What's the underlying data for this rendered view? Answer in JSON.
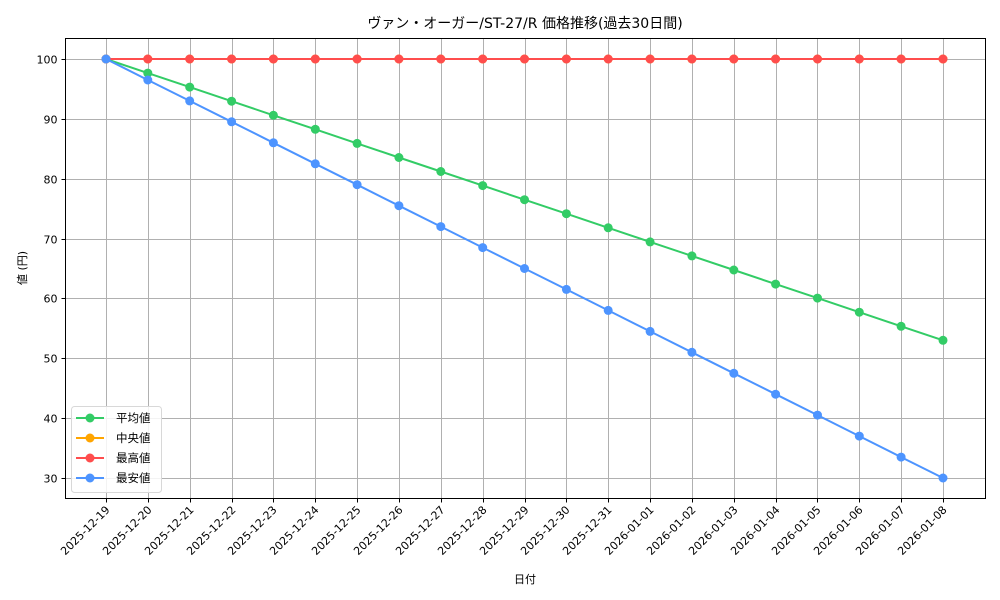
{
  "chart_data": {
    "type": "line",
    "title": "ヴァン・オーガー/ST-27/R 価格推移(過去30日間)",
    "xlabel": "日付",
    "ylabel": "値 (円)",
    "categories": [
      "2025-12-19",
      "2025-12-20",
      "2025-12-21",
      "2025-12-22",
      "2025-12-23",
      "2025-12-24",
      "2025-12-25",
      "2025-12-26",
      "2025-12-27",
      "2025-12-28",
      "2025-12-29",
      "2025-12-30",
      "2025-12-31",
      "2026-01-01",
      "2026-01-02",
      "2026-01-03",
      "2026-01-04",
      "2026-01-05",
      "2026-01-06",
      "2026-01-07",
      "2026-01-08"
    ],
    "yticks": [
      30,
      40,
      50,
      60,
      70,
      80,
      90,
      100
    ],
    "ylim": [
      26.5,
      103.5
    ],
    "grid": true,
    "legend_position": "lower left",
    "series": [
      {
        "name": "平均値",
        "color": "#33cc66",
        "values": [
          100,
          97.65,
          95.3,
          92.95,
          90.6,
          88.25,
          85.9,
          83.55,
          81.2,
          78.85,
          76.5,
          74.15,
          71.8,
          69.45,
          67.1,
          64.75,
          62.4,
          60.05,
          57.7,
          55.35,
          53.0
        ]
      },
      {
        "name": "中央値",
        "color": "#ffa500",
        "values": [
          100,
          100,
          100,
          100,
          100,
          100,
          100,
          100,
          100,
          100,
          100,
          100,
          100,
          100,
          100,
          100,
          100,
          100,
          100,
          100,
          100
        ]
      },
      {
        "name": "最高値",
        "color": "#ff4d4d",
        "values": [
          100,
          100,
          100,
          100,
          100,
          100,
          100,
          100,
          100,
          100,
          100,
          100,
          100,
          100,
          100,
          100,
          100,
          100,
          100,
          100,
          100
        ]
      },
      {
        "name": "最安値",
        "color": "#4d94ff",
        "values": [
          100,
          96.5,
          93,
          89.5,
          86,
          82.5,
          79,
          75.5,
          72,
          68.5,
          65,
          61.5,
          58,
          54.5,
          51,
          47.5,
          44,
          40.5,
          37,
          33.5,
          30
        ]
      }
    ]
  }
}
